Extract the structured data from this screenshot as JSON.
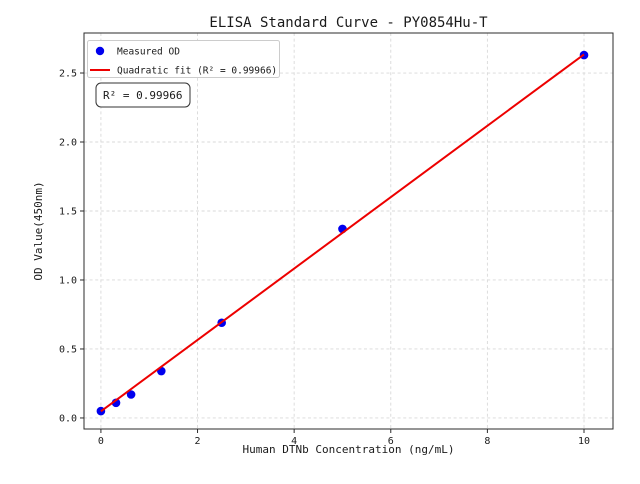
{
  "window": {
    "background": "#ffffff"
  },
  "chart_data": {
    "type": "scatter",
    "title": "ELISA Standard Curve - PY0854Hu-T",
    "xlabel": "Human DTNb Concentration (ng/mL)",
    "ylabel": "OD Value(450nm)",
    "xlim": [
      -0.35,
      10.6
    ],
    "ylim": [
      -0.08,
      2.79
    ],
    "xticks": [
      0,
      2,
      4,
      6,
      8,
      10
    ],
    "xtick_labels": [
      "0",
      "2",
      "4",
      "6",
      "8",
      "10"
    ],
    "yticks": [
      0,
      0.5,
      1,
      1.5,
      2,
      2.5
    ],
    "ytick_labels": [
      "0.0",
      "0.5",
      "1.0",
      "1.5",
      "2.0",
      "2.5"
    ],
    "grid": true,
    "series": [
      {
        "name": "Measured OD",
        "kind": "scatter",
        "color": "#0000ee",
        "x": [
          0,
          0.313,
          0.625,
          1.25,
          2.5,
          5,
          10
        ],
        "y": [
          0.05,
          0.11,
          0.17,
          0.34,
          0.69,
          1.37,
          2.63
        ]
      },
      {
        "name": "Quadratic fit (R² = 0.99966)",
        "kind": "line",
        "color": "#ed0000",
        "x": [
          0,
          10
        ],
        "y": [
          0.048,
          2.635
        ]
      }
    ],
    "legend": {
      "position": "upper left",
      "items": [
        {
          "label": "Measured OD",
          "marker": "dot",
          "color": "#0000ee"
        },
        {
          "label": "Quadratic fit (R² = 0.99966)",
          "marker": "line",
          "color": "#ed0000"
        }
      ]
    },
    "annotation": {
      "text": "R² = 0.99966",
      "r_squared": 0.99966
    }
  }
}
